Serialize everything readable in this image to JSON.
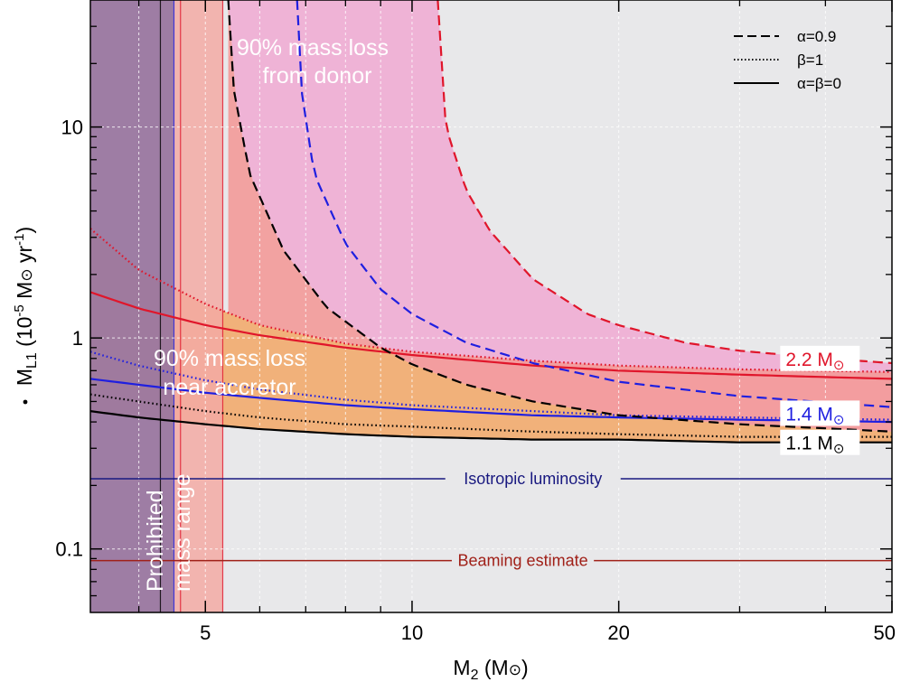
{
  "colors": {
    "background": "#e8e8ea",
    "prohibited": "#9a77a0",
    "neutron_star_band": "#f3aaa4",
    "donor_region": "#efb3d6",
    "accretor_region": "#f1b17a",
    "overlap_region": "#f39a99",
    "red": "#e0162b",
    "blue": "#1f1fe0",
    "black": "#000000",
    "dark_red": "#a02018",
    "navy": "#191980",
    "white": "#ffffff"
  },
  "chart_data": {
    "type": "line",
    "title": "",
    "xlabel": "M",
    "xlabel_sub": "2",
    "xlabel_unit": " (M",
    "xlabel_close": ")",
    "ylabel": "M",
    "ylabel_sub": "L1",
    "ylabel_mid": " (10",
    "ylabel_exp": "-5",
    "ylabel_mid2": " M",
    "ylabel_unit": " yr",
    "ylabel_exp2": "-1",
    "ylabel_close": ")",
    "xscale": "log",
    "yscale": "log",
    "xlim": [
      3.4,
      50
    ],
    "ylim": [
      0.05,
      40
    ],
    "xticks": [
      {
        "value": 5,
        "label": "5"
      },
      {
        "value": 10,
        "label": "10"
      },
      {
        "value": 20,
        "label": "20"
      },
      {
        "value": 50,
        "label": "50"
      }
    ],
    "yticks": [
      {
        "value": 0.1,
        "label": "0.1"
      },
      {
        "value": 1,
        "label": "1"
      },
      {
        "value": 10,
        "label": "10"
      }
    ],
    "grid": true,
    "legend": {
      "placement": "top-right",
      "entries": [
        {
          "label": "α=0.9",
          "style": "dashed"
        },
        {
          "label": "β=1",
          "style": "dotted"
        },
        {
          "label": "α=β=0",
          "style": "solid"
        }
      ]
    },
    "vertical_bands": [
      {
        "name": "prohibited",
        "x_from": 3.4,
        "x_to": 4.5
      },
      {
        "name": "neutron-star",
        "x_from": 4.5,
        "x_to": 5.3
      }
    ],
    "vertical_lines": [
      4.3,
      4.5,
      4.6,
      5.3
    ],
    "horizontal_lines": [
      {
        "name": "isotropic",
        "y": 0.215,
        "label": "Isotropic luminosity",
        "label_x": 15
      },
      {
        "name": "beaming",
        "y": 0.088,
        "label": "Beaming estimate",
        "label_x": 14.5
      }
    ],
    "mass_curves": [
      {
        "mass": "2.2 M",
        "color": "red",
        "dashed": {
          "x": [
            10.9,
            11.2,
            12,
            13,
            15,
            18,
            20,
            25,
            30,
            40,
            50
          ],
          "y": [
            40,
            10,
            5,
            3.2,
            1.9,
            1.3,
            1.15,
            0.95,
            0.87,
            0.8,
            0.76
          ]
        },
        "dotted": {
          "x": [
            3.4,
            4,
            5,
            6,
            8,
            10,
            15,
            20,
            30,
            50
          ],
          "y": [
            3.3,
            2.1,
            1.45,
            1.15,
            0.94,
            0.86,
            0.78,
            0.74,
            0.71,
            0.69
          ]
        },
        "solid": {
          "x": [
            3.4,
            4,
            5,
            6,
            8,
            10,
            15,
            20,
            30,
            50
          ],
          "y": [
            1.65,
            1.38,
            1.15,
            1.03,
            0.9,
            0.83,
            0.74,
            0.7,
            0.67,
            0.64
          ]
        },
        "label_x": 35,
        "label_y": 0.8
      },
      {
        "mass": "1.4 M",
        "color": "blue",
        "dashed": {
          "x": [
            6.8,
            6.9,
            7.2,
            8,
            9,
            10,
            12,
            15,
            20,
            30,
            50
          ],
          "y": [
            40,
            15,
            6,
            2.8,
            1.7,
            1.3,
            0.95,
            0.76,
            0.62,
            0.53,
            0.47
          ]
        },
        "dotted": {
          "x": [
            3.4,
            4,
            5,
            6,
            8,
            10,
            15,
            20,
            30,
            50
          ],
          "y": [
            0.86,
            0.74,
            0.63,
            0.57,
            0.51,
            0.48,
            0.45,
            0.43,
            0.42,
            0.41
          ]
        },
        "solid": {
          "x": [
            3.4,
            4,
            5,
            6,
            8,
            10,
            15,
            20,
            30,
            50
          ],
          "y": [
            0.64,
            0.6,
            0.55,
            0.52,
            0.48,
            0.46,
            0.43,
            0.42,
            0.41,
            0.4
          ]
        },
        "label_x": 35,
        "label_y": 0.44
      },
      {
        "mass": "1.1 M",
        "color": "black",
        "dashed": {
          "x": [
            5.4,
            5.5,
            5.8,
            6.5,
            7.5,
            9,
            10,
            12,
            15,
            20,
            30,
            50
          ],
          "y": [
            40,
            15,
            6,
            2.6,
            1.4,
            0.9,
            0.75,
            0.6,
            0.5,
            0.43,
            0.39,
            0.36
          ]
        },
        "dotted": {
          "x": [
            3.4,
            4,
            5,
            6,
            8,
            10,
            15,
            20,
            30,
            50
          ],
          "y": [
            0.54,
            0.5,
            0.45,
            0.42,
            0.39,
            0.38,
            0.36,
            0.35,
            0.34,
            0.34
          ]
        },
        "solid": {
          "x": [
            3.4,
            4,
            5,
            6,
            8,
            10,
            15,
            20,
            30,
            50
          ],
          "y": [
            0.45,
            0.42,
            0.39,
            0.37,
            0.35,
            0.34,
            0.33,
            0.33,
            0.32,
            0.32
          ]
        },
        "label_x": 35,
        "label_y": 0.32
      }
    ],
    "annotations": {
      "donor_line1": "90% mass loss",
      "donor_line2": "from donor",
      "accretor_line1": "90% mass loss",
      "accretor_line2": "near accretor",
      "prohibited_line1": "Prohibited",
      "prohibited_line2": "mass range"
    },
    "sun_symbol": "⊙"
  }
}
